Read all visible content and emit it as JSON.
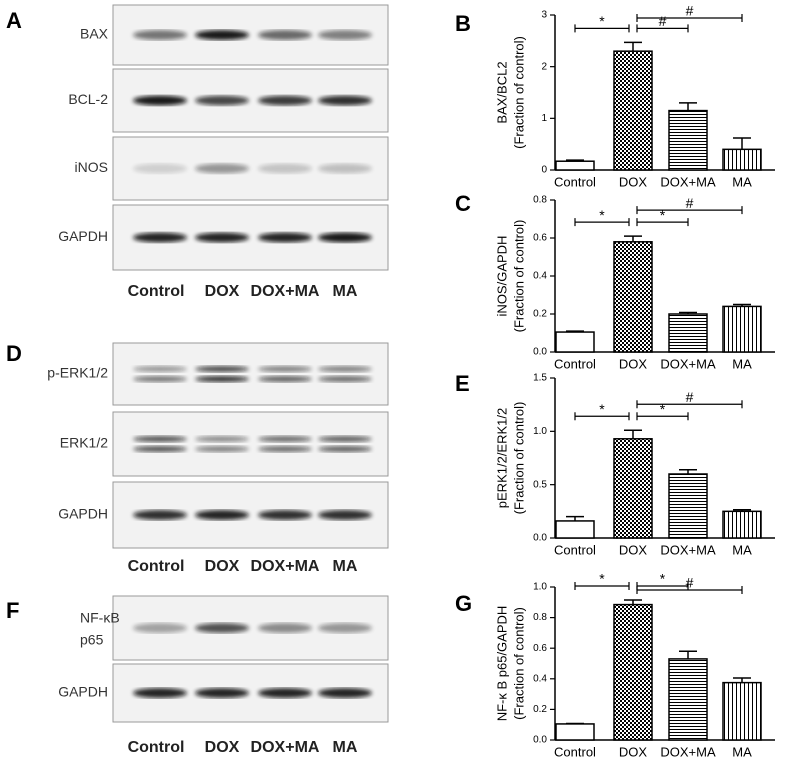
{
  "panels": {
    "A": {
      "letter": "A",
      "rows": [
        "BAX",
        "BCL-2",
        "iNOS",
        "GAPDH"
      ],
      "lanes": [
        "Control",
        "DOX",
        "DOX+MA",
        "MA"
      ]
    },
    "D": {
      "letter": "D",
      "rows": [
        "p-ERK1/2",
        "ERK1/2",
        "GAPDH"
      ],
      "lanes": [
        "Control",
        "DOX",
        "DOX+MA",
        "MA"
      ]
    },
    "F": {
      "letter": "F",
      "rows": [
        [
          "NF-κB",
          "p65"
        ],
        "GAPDH"
      ],
      "lanes": [
        "Control",
        "DOX",
        "DOX+MA",
        "MA"
      ]
    }
  },
  "chart_data": [
    {
      "type": "bar",
      "letter": "B",
      "ylabel": [
        "BAX/BCL2",
        "(Fraction of control)"
      ],
      "categories": [
        "Control",
        "DOX",
        "DOX+MA",
        "MA"
      ],
      "values": [
        0.17,
        2.3,
        1.15,
        0.4
      ],
      "errors": [
        0.02,
        0.17,
        0.15,
        0.22
      ],
      "patterns": [
        "none",
        "checker",
        "horizontal",
        "vertical"
      ],
      "ylim": [
        0,
        3
      ],
      "yticks": [
        0,
        1,
        2,
        3
      ],
      "annotations": [
        {
          "label": "*",
          "between": [
            "Control",
            "DOX"
          ]
        },
        {
          "label": "#",
          "between": [
            "DOX",
            "DOX+MA"
          ]
        },
        {
          "label": "#",
          "between": [
            "DOX",
            "MA"
          ]
        }
      ]
    },
    {
      "type": "bar",
      "letter": "C",
      "ylabel": [
        "iNOS/GAPDH",
        "(Fraction of control)"
      ],
      "categories": [
        "Control",
        "DOX",
        "DOX+MA",
        "MA"
      ],
      "values": [
        0.105,
        0.58,
        0.2,
        0.24
      ],
      "errors": [
        0.005,
        0.03,
        0.008,
        0.01
      ],
      "patterns": [
        "none",
        "checker",
        "horizontal",
        "vertical"
      ],
      "ylim": [
        0,
        0.8
      ],
      "yticks": [
        {
          "value": 0,
          "label": "0.0"
        },
        0.2,
        0.4,
        0.6,
        0.8
      ],
      "annotations": [
        {
          "label": "*",
          "between": [
            "Control",
            "DOX"
          ]
        },
        {
          "label": "*",
          "between": [
            "DOX",
            "DOX+MA"
          ]
        },
        {
          "label": "#",
          "between": [
            "DOX",
            "MA"
          ]
        }
      ]
    },
    {
      "type": "bar",
      "letter": "E",
      "ylabel": [
        "pERK1/2/ERK1/2",
        "(Fraction of control)"
      ],
      "categories": [
        "Control",
        "DOX",
        "DOX+MA",
        "MA"
      ],
      "values": [
        0.16,
        0.93,
        0.6,
        0.25
      ],
      "errors": [
        0.04,
        0.08,
        0.04,
        0.015
      ],
      "patterns": [
        "none",
        "checker",
        "horizontal",
        "vertical"
      ],
      "ylim": [
        0,
        1.5
      ],
      "yticks": [
        {
          "value": 0,
          "label": "0.0"
        },
        0.5,
        {
          "value": 1,
          "label": "1.0"
        },
        1.5
      ],
      "annotations": [
        {
          "label": "*",
          "between": [
            "Control",
            "DOX"
          ]
        },
        {
          "label": "*",
          "between": [
            "DOX",
            "DOX+MA"
          ]
        },
        {
          "label": "#",
          "between": [
            "DOX",
            "MA"
          ]
        }
      ]
    },
    {
      "type": "bar",
      "letter": "G",
      "ylabel": [
        "NF-κ B p65/GAPDH",
        "(Fraction of control)"
      ],
      "categories": [
        "Control",
        "DOX",
        "DOX+MA",
        "MA"
      ],
      "values": [
        0.105,
        0.885,
        0.53,
        0.375
      ],
      "errors": [
        0.003,
        0.03,
        0.05,
        0.03
      ],
      "patterns": [
        "none",
        "checker",
        "horizontal",
        "vertical"
      ],
      "ylim": [
        0,
        1
      ],
      "yticks": [
        {
          "value": 0,
          "label": "0.0"
        },
        0.2,
        0.4,
        0.6,
        0.8,
        {
          "value": 1,
          "label": "1.0"
        }
      ],
      "annotations": [
        {
          "label": "*",
          "between": [
            "Control",
            "DOX"
          ]
        },
        {
          "label": "*",
          "between": [
            "DOX",
            "DOX+MA"
          ]
        },
        {
          "label": "#",
          "between": [
            "DOX",
            "MA"
          ]
        }
      ]
    }
  ]
}
